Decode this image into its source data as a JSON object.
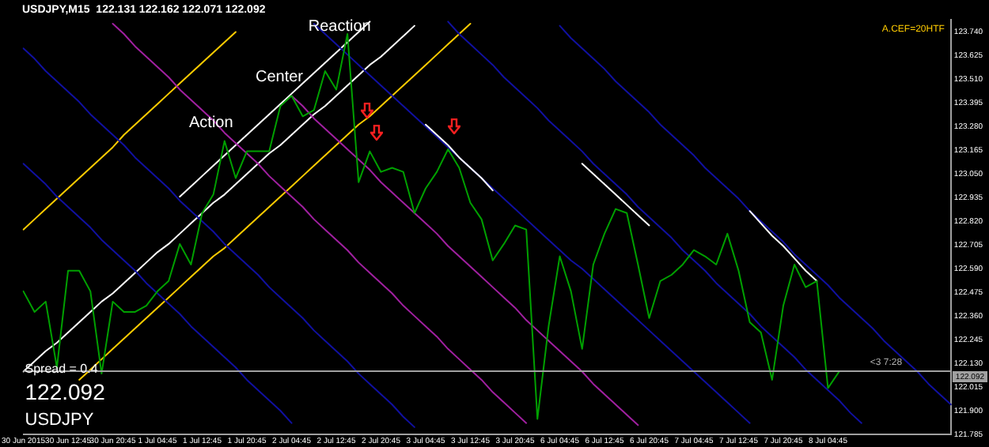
{
  "chart_data": {
    "type": "line",
    "title": "USDJPY,M15  122.131 122.162 122.071 122.092",
    "categories": [
      "30 Jun 2015",
      null,
      null,
      null,
      "30 Jun 12:45",
      null,
      null,
      null,
      "30 Jun 20:45",
      null,
      null,
      null,
      "1 Jul 04:45",
      null,
      null,
      null,
      "1 Jul 12:45",
      null,
      null,
      null,
      "1 Jul 20:45",
      null,
      null,
      null,
      "2 Jul 04:45",
      null,
      null,
      null,
      "2 Jul 12:45",
      null,
      null,
      null,
      "2 Jul 20:45",
      null,
      null,
      null,
      "3 Jul 04:45",
      null,
      null,
      null,
      "3 Jul 12:45",
      null,
      null,
      null,
      "3 Jul 20:45",
      null,
      null,
      null,
      "6 Jul 04:45",
      null,
      null,
      null,
      "6 Jul 12:45",
      null,
      null,
      null,
      "6 Jul 20:45",
      null,
      null,
      null,
      "7 Jul 04:45",
      null,
      null,
      null,
      "7 Jul 12:45",
      null,
      null,
      null,
      "7 Jul 20:45",
      null,
      null,
      null,
      "8 Jul 04:45",
      null,
      null,
      null,
      null,
      null,
      null,
      null,
      null,
      null,
      null,
      null
    ],
    "ylim": [
      121.785,
      123.8
    ],
    "yticks": [
      {
        "value": 123.74,
        "label": "123.740"
      },
      {
        "value": 123.625,
        "label": "123.625"
      },
      {
        "value": 123.51,
        "label": "123.510"
      },
      {
        "value": 123.395,
        "label": "123.395"
      },
      {
        "value": 123.28,
        "label": "123.280"
      },
      {
        "value": 123.165,
        "label": "123.165"
      },
      {
        "value": 123.05,
        "label": "123.050"
      },
      {
        "value": 122.935,
        "label": "122.935"
      },
      {
        "value": 122.82,
        "label": "122.820"
      },
      {
        "value": 122.705,
        "label": "122.705"
      },
      {
        "value": 122.59,
        "label": "122.590"
      },
      {
        "value": 122.475,
        "label": "122.475"
      },
      {
        "value": 122.36,
        "label": "122.360"
      },
      {
        "value": 122.245,
        "label": "122.245"
      },
      {
        "value": 122.13,
        "label": "122.130"
      },
      {
        "value": 122.015,
        "label": "122.015"
      },
      {
        "value": 121.9,
        "label": "121.900"
      },
      {
        "value": 121.785,
        "label": "121.785"
      }
    ],
    "grid": false,
    "legend": false,
    "marker": "none",
    "line_style": "solid",
    "series": [
      {
        "color": "#ffcc00",
        "values": [
          122.78,
          122.83,
          122.88,
          122.93,
          122.98,
          123.03,
          123.08,
          123.13,
          123.18,
          123.24,
          123.29,
          123.34,
          123.39,
          123.44,
          123.49,
          123.54,
          123.59,
          123.64,
          123.69,
          123.74,
          null,
          null,
          null,
          null,
          null,
          null,
          null,
          null,
          null,
          null,
          null,
          null,
          null,
          null,
          null,
          null,
          null,
          null,
          null,
          null,
          null,
          null,
          null,
          null,
          null,
          null,
          null,
          null,
          null,
          null,
          null,
          null,
          null,
          null,
          null,
          null,
          null,
          null,
          null,
          null,
          null,
          null,
          null,
          null,
          null,
          null,
          null,
          null,
          null,
          null,
          null,
          null,
          null,
          null,
          null,
          null,
          null,
          null,
          null,
          null,
          null,
          null,
          null,
          null
        ]
      },
      {
        "color": "#ffcc00",
        "values": [
          null,
          null,
          null,
          null,
          null,
          122.05,
          122.1,
          122.15,
          122.2,
          122.25,
          122.3,
          122.35,
          122.4,
          122.45,
          122.5,
          122.55,
          122.6,
          122.65,
          122.69,
          122.74,
          122.79,
          122.84,
          122.89,
          122.94,
          122.99,
          123.04,
          123.09,
          123.14,
          123.19,
          123.24,
          123.29,
          123.33,
          123.38,
          123.43,
          123.48,
          123.53,
          123.58,
          123.63,
          123.68,
          123.73,
          123.78,
          null,
          null,
          null,
          null,
          null,
          null,
          null,
          null,
          null,
          null,
          null,
          null,
          null,
          null,
          null,
          null,
          null,
          null,
          null,
          null,
          null,
          null,
          null,
          null,
          null,
          null,
          null,
          null,
          null,
          null,
          null,
          null,
          null,
          null,
          null,
          null,
          null,
          null,
          null,
          null,
          null,
          null,
          null
        ]
      },
      {
        "color": "#ffffff",
        "values": [
          122.09,
          122.14,
          122.19,
          122.23,
          122.28,
          122.33,
          122.38,
          122.43,
          122.47,
          122.52,
          122.57,
          122.62,
          122.67,
          122.71,
          122.76,
          122.81,
          122.86,
          122.91,
          122.95,
          123.0,
          123.05,
          123.1,
          123.15,
          123.19,
          123.24,
          123.29,
          123.34,
          123.38,
          123.43,
          123.48,
          123.53,
          123.58,
          123.62,
          123.67,
          123.72,
          123.77,
          null,
          null,
          null,
          null,
          null,
          null,
          null,
          null,
          null,
          null,
          null,
          null,
          null,
          null,
          null,
          null,
          null,
          null,
          null,
          null,
          null,
          null,
          null,
          null,
          null,
          null,
          null,
          null,
          null,
          null,
          null,
          null,
          null,
          null,
          null,
          null,
          null,
          null,
          null,
          null,
          null,
          null,
          null,
          null,
          null,
          null,
          null,
          null
        ]
      },
      {
        "color": "#ffffff",
        "values": [
          null,
          null,
          null,
          null,
          null,
          null,
          null,
          null,
          null,
          null,
          null,
          null,
          null,
          null,
          122.94,
          122.99,
          123.04,
          123.09,
          123.14,
          123.19,
          123.24,
          123.29,
          123.34,
          123.39,
          123.44,
          123.49,
          123.54,
          123.59,
          123.64,
          123.69,
          123.74,
          123.79,
          null,
          null,
          null,
          null,
          null,
          null,
          null,
          null,
          null,
          null,
          null,
          null,
          null,
          null,
          null,
          null,
          null,
          null,
          null,
          null,
          null,
          null,
          null,
          null,
          null,
          null,
          null,
          null,
          null,
          null,
          null,
          null,
          null,
          null,
          null,
          null,
          null,
          null,
          null,
          null,
          null,
          null,
          null,
          null,
          null,
          null,
          null,
          null,
          null,
          null,
          null,
          null
        ]
      },
      {
        "color": "#1010a0",
        "values": [
          123.66,
          123.61,
          123.55,
          123.5,
          123.45,
          123.4,
          123.34,
          123.29,
          123.24,
          123.19,
          123.13,
          123.08,
          123.03,
          122.98,
          122.92,
          122.87,
          122.82,
          122.77,
          122.71,
          122.66,
          122.61,
          122.56,
          122.5,
          122.45,
          122.4,
          122.35,
          122.29,
          122.24,
          122.19,
          122.14,
          122.08,
          122.03,
          121.98,
          121.93,
          121.87,
          121.82,
          null,
          null,
          null,
          null,
          null,
          null,
          null,
          null,
          null,
          null,
          null,
          null,
          null,
          null,
          null,
          null,
          null,
          null,
          null,
          null,
          null,
          null,
          null,
          null,
          null,
          null,
          null,
          null,
          null,
          null,
          null,
          null,
          null,
          null,
          null,
          null,
          null,
          null,
          null,
          null,
          null,
          null,
          null,
          null,
          null,
          null,
          null,
          null
        ]
      },
      {
        "color": "#1010a0",
        "values": [
          123.1,
          123.05,
          123.0,
          122.94,
          122.89,
          122.84,
          122.79,
          122.73,
          122.68,
          122.63,
          122.58,
          122.52,
          122.47,
          122.42,
          122.37,
          122.31,
          122.26,
          122.21,
          122.16,
          122.11,
          122.05,
          122.0,
          121.95,
          121.9,
          121.84,
          null,
          null,
          null,
          null,
          null,
          null,
          null,
          null,
          null,
          null,
          null,
          null,
          null,
          null,
          null,
          null,
          null,
          null,
          null,
          null,
          null,
          null,
          null,
          null,
          null,
          null,
          null,
          null,
          null,
          null,
          null,
          null,
          null,
          null,
          null,
          null,
          null,
          null,
          null,
          null,
          null,
          null,
          null,
          null,
          null,
          null,
          null,
          null,
          null,
          null,
          null,
          null,
          null,
          null,
          null,
          null,
          null,
          null,
          null
        ]
      },
      {
        "color": "#1010a0",
        "values": [
          null,
          null,
          null,
          null,
          null,
          null,
          null,
          null,
          null,
          null,
          null,
          null,
          null,
          null,
          null,
          null,
          null,
          null,
          null,
          null,
          null,
          null,
          null,
          null,
          null,
          null,
          123.78,
          123.73,
          123.68,
          123.63,
          123.58,
          123.53,
          123.48,
          123.43,
          123.38,
          123.33,
          123.28,
          123.23,
          123.18,
          123.13,
          123.08,
          123.03,
          122.98,
          122.93,
          122.88,
          122.83,
          122.78,
          122.73,
          122.68,
          122.63,
          122.59,
          122.54,
          122.49,
          122.44,
          122.39,
          122.34,
          122.29,
          122.24,
          122.19,
          122.14,
          122.09,
          122.04,
          121.99,
          121.94,
          121.89,
          121.84,
          null,
          null,
          null,
          null,
          null,
          null,
          null,
          null,
          null,
          null,
          null,
          null,
          null,
          null,
          null,
          null,
          null,
          null
        ]
      },
      {
        "color": "#1010a0",
        "values": [
          null,
          null,
          null,
          null,
          null,
          null,
          null,
          null,
          null,
          null,
          null,
          null,
          null,
          null,
          null,
          null,
          null,
          null,
          null,
          null,
          null,
          null,
          null,
          null,
          null,
          null,
          null,
          null,
          null,
          null,
          null,
          null,
          null,
          null,
          null,
          null,
          null,
          null,
          123.79,
          123.73,
          123.68,
          123.63,
          123.58,
          123.52,
          123.47,
          123.42,
          123.37,
          123.31,
          123.26,
          123.21,
          123.16,
          123.1,
          123.05,
          123.0,
          122.95,
          122.89,
          122.84,
          122.79,
          122.74,
          122.68,
          122.63,
          122.58,
          122.52,
          122.47,
          122.42,
          122.37,
          122.31,
          122.26,
          122.21,
          122.16,
          122.1,
          122.05,
          122.0,
          121.95,
          121.89,
          121.84,
          null,
          null,
          null,
          null,
          null,
          null,
          null,
          null
        ]
      },
      {
        "color": "#1010a0",
        "values": [
          null,
          null,
          null,
          null,
          null,
          null,
          null,
          null,
          null,
          null,
          null,
          null,
          null,
          null,
          null,
          null,
          null,
          null,
          null,
          null,
          null,
          null,
          null,
          null,
          null,
          null,
          null,
          null,
          null,
          null,
          null,
          null,
          null,
          null,
          null,
          null,
          null,
          null,
          null,
          null,
          null,
          null,
          null,
          null,
          null,
          null,
          null,
          null,
          123.77,
          123.71,
          123.66,
          123.61,
          123.56,
          123.5,
          123.45,
          123.4,
          123.35,
          123.29,
          123.24,
          123.19,
          123.14,
          123.08,
          123.03,
          122.98,
          122.93,
          122.87,
          122.82,
          122.77,
          122.72,
          122.66,
          122.61,
          122.56,
          122.51,
          122.45,
          122.4,
          122.35,
          122.3,
          122.24,
          122.19,
          122.14,
          122.09,
          122.03,
          121.98,
          121.93
        ]
      },
      {
        "color": "#a020a0",
        "values": [
          null,
          null,
          null,
          null,
          null,
          null,
          null,
          null,
          123.78,
          123.73,
          123.67,
          123.62,
          123.57,
          123.52,
          123.46,
          123.41,
          123.36,
          123.31,
          123.25,
          123.2,
          123.15,
          123.1,
          123.04,
          122.99,
          122.94,
          122.89,
          122.83,
          122.78,
          122.73,
          122.68,
          122.62,
          122.57,
          122.52,
          122.47,
          122.41,
          122.36,
          122.31,
          122.26,
          122.2,
          122.15,
          122.1,
          122.05,
          121.99,
          121.94,
          121.89,
          121.84,
          null,
          null,
          null,
          null,
          null,
          null,
          null,
          null,
          null,
          null,
          null,
          null,
          null,
          null,
          null,
          null,
          null,
          null,
          null,
          null,
          null,
          null,
          null,
          null,
          null,
          null,
          null,
          null,
          null,
          null,
          null,
          null,
          null,
          null,
          null,
          null,
          null,
          null
        ]
      },
      {
        "color": "#a020a0",
        "values": [
          null,
          null,
          null,
          null,
          null,
          null,
          null,
          null,
          null,
          null,
          null,
          null,
          null,
          null,
          null,
          null,
          null,
          null,
          null,
          null,
          null,
          null,
          null,
          null,
          123.43,
          123.38,
          123.32,
          123.27,
          123.22,
          123.17,
          123.12,
          123.07,
          123.01,
          122.96,
          122.91,
          122.86,
          122.81,
          122.76,
          122.7,
          122.65,
          122.6,
          122.55,
          122.5,
          122.45,
          122.4,
          122.34,
          122.29,
          122.24,
          122.19,
          122.14,
          122.09,
          122.03,
          121.98,
          121.93,
          121.88,
          121.83,
          null,
          null,
          null,
          null,
          null,
          null,
          null,
          null,
          null,
          null,
          null,
          null,
          null,
          null,
          null,
          null,
          null,
          null,
          null,
          null,
          null,
          null,
          null,
          null,
          null,
          null,
          null,
          null
        ]
      },
      {
        "color": "#ffffff",
        "values": [
          null,
          null,
          null,
          null,
          null,
          null,
          null,
          null,
          null,
          null,
          null,
          null,
          null,
          null,
          null,
          null,
          null,
          null,
          null,
          null,
          null,
          null,
          null,
          null,
          null,
          null,
          null,
          null,
          null,
          null,
          null,
          null,
          null,
          null,
          null,
          null,
          123.29,
          123.24,
          123.19,
          123.13,
          123.08,
          123.03,
          122.97,
          null,
          null,
          null,
          null,
          null,
          null,
          null,
          null,
          null,
          null,
          null,
          null,
          null,
          null,
          null,
          null,
          null,
          null,
          null,
          null,
          null,
          null,
          null,
          null,
          null,
          null,
          null,
          null,
          null,
          null,
          null,
          null,
          null,
          null,
          null,
          null,
          null,
          null,
          null,
          null,
          null
        ]
      },
      {
        "color": "#ffffff",
        "values": [
          null,
          null,
          null,
          null,
          null,
          null,
          null,
          null,
          null,
          null,
          null,
          null,
          null,
          null,
          null,
          null,
          null,
          null,
          null,
          null,
          null,
          null,
          null,
          null,
          null,
          null,
          null,
          null,
          null,
          null,
          null,
          null,
          null,
          null,
          null,
          null,
          null,
          null,
          null,
          null,
          null,
          null,
          null,
          null,
          null,
          null,
          null,
          null,
          null,
          null,
          123.1,
          123.05,
          123.0,
          122.95,
          122.9,
          122.85,
          122.8,
          null,
          null,
          null,
          null,
          null,
          null,
          null,
          null,
          null,
          null,
          null,
          null,
          null,
          null,
          null,
          null,
          null,
          null,
          null,
          null,
          null,
          null,
          null,
          null,
          null,
          null,
          null
        ]
      },
      {
        "color": "#ffffff",
        "values": [
          null,
          null,
          null,
          null,
          null,
          null,
          null,
          null,
          null,
          null,
          null,
          null,
          null,
          null,
          null,
          null,
          null,
          null,
          null,
          null,
          null,
          null,
          null,
          null,
          null,
          null,
          null,
          null,
          null,
          null,
          null,
          null,
          null,
          null,
          null,
          null,
          null,
          null,
          null,
          null,
          null,
          null,
          null,
          null,
          null,
          null,
          null,
          null,
          null,
          null,
          null,
          null,
          null,
          null,
          null,
          null,
          null,
          null,
          null,
          null,
          null,
          null,
          null,
          null,
          null,
          122.87,
          122.81,
          122.75,
          122.7,
          122.64,
          122.58,
          122.53,
          null,
          null,
          null,
          null,
          null,
          null,
          null,
          null,
          null,
          null,
          null,
          null
        ]
      },
      {
        "color": "#00a000",
        "values": [
          122.48,
          122.38,
          122.43,
          122.11,
          122.58,
          122.58,
          122.48,
          122.08,
          122.43,
          122.38,
          122.38,
          122.41,
          122.48,
          122.53,
          122.71,
          122.61,
          122.86,
          122.95,
          123.21,
          123.03,
          123.16,
          123.16,
          123.16,
          123.38,
          123.43,
          123.33,
          123.36,
          123.55,
          123.46,
          123.73,
          123.01,
          123.16,
          123.06,
          123.08,
          123.06,
          122.86,
          122.98,
          123.06,
          123.17,
          123.08,
          122.91,
          122.83,
          122.63,
          122.71,
          122.8,
          122.78,
          121.86,
          122.31,
          122.65,
          122.48,
          122.2,
          122.61,
          122.76,
          122.88,
          122.86,
          122.61,
          122.35,
          122.53,
          122.56,
          122.61,
          122.68,
          122.65,
          122.61,
          122.76,
          122.58,
          122.33,
          122.28,
          122.05,
          122.41,
          122.61,
          122.5,
          122.53,
          122.01,
          122.09,
          null,
          null,
          null,
          null,
          null,
          null,
          null,
          null,
          null,
          null
        ]
      }
    ],
    "ref_lines": [
      {
        "axis": "y",
        "value": 122.092,
        "label": "122.092",
        "color": "#a0a0a0"
      }
    ],
    "annotations": [
      "Action",
      "Center",
      "Reaction",
      "<3 7:28",
      "Spread = 0.4",
      "122.092",
      "USDJPY",
      "A.CEF=20HTF"
    ]
  }
}
